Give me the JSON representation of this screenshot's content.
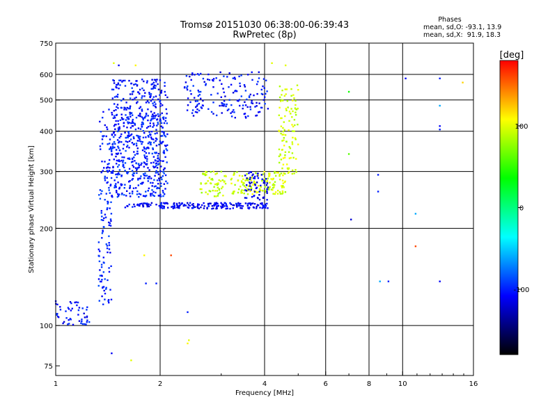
{
  "chart_data": {
    "type": "scatter",
    "title": "Tromsø 20151030 06:38:00-06:39:43",
    "subtitle": "RwPretec (8p)",
    "xlabel": "Frequency [MHz]",
    "ylabel": "Stationary phase Virtual Height [km]",
    "x_scale": "log",
    "y_scale": "log",
    "xlim": [
      1,
      16
    ],
    "ylim": [
      70,
      750
    ],
    "x_ticks": [
      1,
      2,
      4,
      6,
      8,
      10,
      16
    ],
    "x_tick_labels": [
      "1",
      "2",
      "4",
      "6",
      "8",
      "10",
      "16"
    ],
    "x_gridlines": [
      2,
      4,
      6,
      8,
      10
    ],
    "y_ticks": [
      75,
      100,
      200,
      300,
      400,
      500,
      600,
      750
    ],
    "y_tick_labels": [
      "75",
      "100",
      "200",
      "300",
      "400",
      "500",
      "600",
      "750"
    ],
    "y_gridlines": [
      100,
      200,
      300,
      400,
      500,
      600
    ],
    "grid": true,
    "stats": {
      "heading": "Phases",
      "line_o": "mean, sd,O: -93.1, 13.9",
      "line_x": "mean, sd,X:  91.9, 18.3"
    },
    "colorbar": {
      "label": "[deg]",
      "range": [
        -180,
        180
      ],
      "ticks": [
        100,
        0,
        -100
      ],
      "tick_labels": [
        "100",
        "0",
        "-100"
      ],
      "colors": [
        "#ff0000",
        "#ffff00",
        "#00ff00",
        "#00ffff",
        "#0000ff",
        "#000000"
      ]
    },
    "traces": [
      {
        "f0": 1.33,
        "f1": 1.45,
        "h0": 115,
        "h1": 470,
        "phase": -100,
        "n": 140
      },
      {
        "f0": 1.45,
        "f1": 2.1,
        "h0": 250,
        "h1": 450,
        "phase": -100,
        "n": 480
      },
      {
        "f0": 1.45,
        "f1": 2.1,
        "h0": 440,
        "h1": 580,
        "phase": -105,
        "n": 170
      },
      {
        "f0": 1.58,
        "f1": 4.1,
        "h0": 230,
        "h1": 240,
        "phase": -110,
        "n": 200
      },
      {
        "f0": 2.35,
        "f1": 4.1,
        "h0": 440,
        "h1": 610,
        "phase": -105,
        "n": 170
      },
      {
        "f0": 2.6,
        "f1": 3.1,
        "h0": 250,
        "h1": 300,
        "phase": 90,
        "n": 60
      },
      {
        "f0": 3.2,
        "f1": 4.6,
        "h0": 255,
        "h1": 300,
        "phase": 95,
        "n": 140
      },
      {
        "f0": 4.4,
        "f1": 5.0,
        "h0": 290,
        "h1": 560,
        "phase": 95,
        "n": 110
      },
      {
        "f0": 3.5,
        "f1": 4.1,
        "h0": 245,
        "h1": 300,
        "phase": -115,
        "n": 60
      },
      {
        "f0": 1.0,
        "f1": 1.25,
        "h0": 100,
        "h1": 120,
        "phase": -105,
        "n": 50
      }
    ],
    "scatter_points": [
      [
        1.47,
        650,
        100
      ],
      [
        1.52,
        640,
        -110
      ],
      [
        1.7,
        640,
        110
      ],
      [
        4.2,
        650,
        100
      ],
      [
        4.6,
        640,
        100
      ],
      [
        7.0,
        530,
        40
      ],
      [
        7.0,
        340,
        60
      ],
      [
        7.1,
        213,
        -120
      ],
      [
        8.5,
        293,
        -100
      ],
      [
        8.5,
        260,
        -100
      ],
      [
        10.2,
        583,
        -110
      ],
      [
        10.9,
        222,
        -60
      ],
      [
        12.8,
        583,
        -100
      ],
      [
        12.8,
        480,
        -60
      ],
      [
        12.8,
        415,
        -110
      ],
      [
        12.8,
        405,
        -100
      ],
      [
        14.9,
        566,
        120
      ],
      [
        9.1,
        137,
        -100
      ],
      [
        8.6,
        137,
        -60
      ],
      [
        10.9,
        176,
        160
      ],
      [
        12.8,
        137,
        -110
      ],
      [
        2.4,
        88,
        110
      ],
      [
        2.42,
        90,
        100
      ],
      [
        2.4,
        110,
        -100
      ],
      [
        1.45,
        82,
        -110
      ],
      [
        1.65,
        78,
        100
      ],
      [
        1.8,
        165,
        110
      ],
      [
        2.15,
        165,
        160
      ],
      [
        1.82,
        135,
        -100
      ],
      [
        1.95,
        135,
        -100
      ]
    ]
  }
}
